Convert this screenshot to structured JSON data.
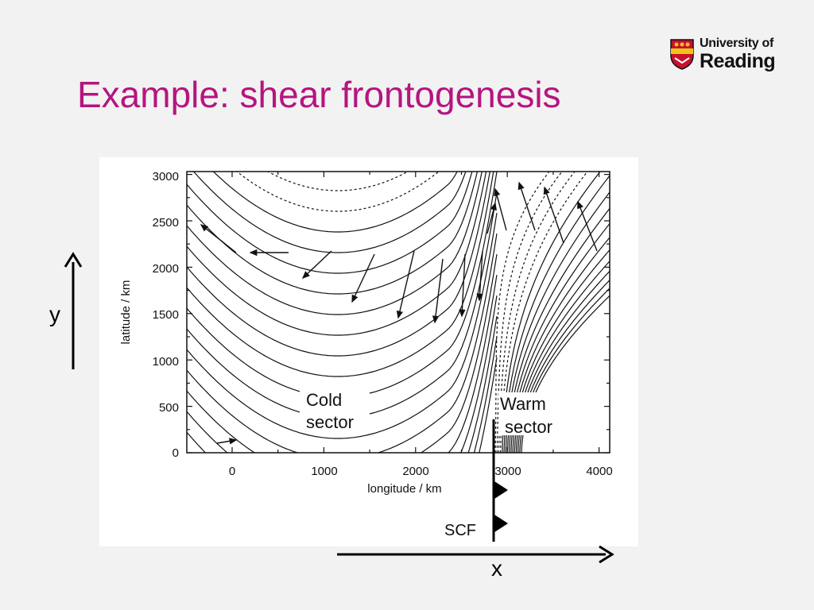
{
  "slide": {
    "title": "Example: shear frontogenesis"
  },
  "logo": {
    "line1": "University of",
    "line2": "Reading",
    "colors": {
      "shield": "#c8102e",
      "bar": "#f0c419"
    }
  },
  "figure": {
    "y_axis_label": "latitude / km",
    "x_axis_label": "longitude / km",
    "y_ticks": [
      "0",
      "500",
      "1000",
      "1500",
      "2000",
      "2500",
      "3000"
    ],
    "x_ticks": [
      "0",
      "1000",
      "2000",
      "3000",
      "4000"
    ],
    "cold_sector": [
      "Cold",
      "sector"
    ],
    "warm_sector": [
      "Warm",
      "sector"
    ],
    "front_label": "SCF"
  },
  "axes_arrows": {
    "y_label": "y",
    "x_label": "x"
  },
  "colors": {
    "title": "#b5157f",
    "background": "#f2f2f2"
  }
}
